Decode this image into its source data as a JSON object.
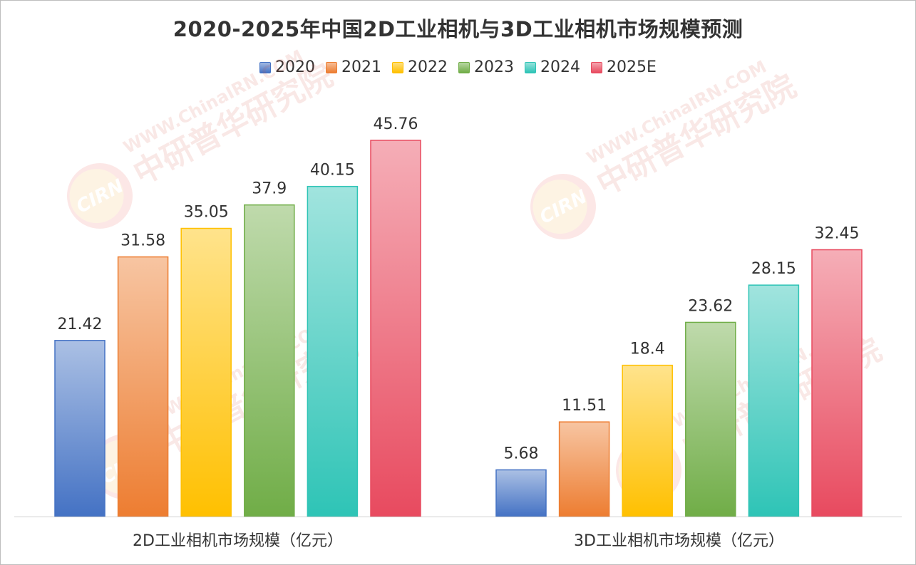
{
  "chart_data": {
    "type": "bar",
    "title": "2020-2025年中国2D工业相机与3D工业相机市场规模预测",
    "categories": [
      "2D工业相机市场规模（亿元）",
      "3D工业相机市场规模（亿元）"
    ],
    "series": [
      {
        "name": "2020",
        "values": [
          21.42,
          5.68
        ],
        "color": "#4472c4"
      },
      {
        "name": "2021",
        "values": [
          31.58,
          11.51
        ],
        "color": "#ed7d31"
      },
      {
        "name": "2022",
        "values": [
          35.05,
          18.4
        ],
        "color": "#ffc000"
      },
      {
        "name": "2023",
        "values": [
          37.9,
          23.62
        ],
        "color": "#70ad47"
      },
      {
        "name": "2024",
        "values": [
          40.15,
          28.15
        ],
        "color": "#2ec4b6"
      },
      {
        "name": "2025E",
        "values": [
          45.76,
          32.45
        ],
        "color": "#e84a5f"
      }
    ],
    "ylim": [
      0,
      50
    ],
    "grid": false,
    "legend_position": "top-center",
    "xlabel": "",
    "ylabel": ""
  },
  "watermark": {
    "logo_text": "CIRN",
    "site_text": "WWW.ChinaIRN.COM",
    "brand_text": "中研普华研究院"
  }
}
